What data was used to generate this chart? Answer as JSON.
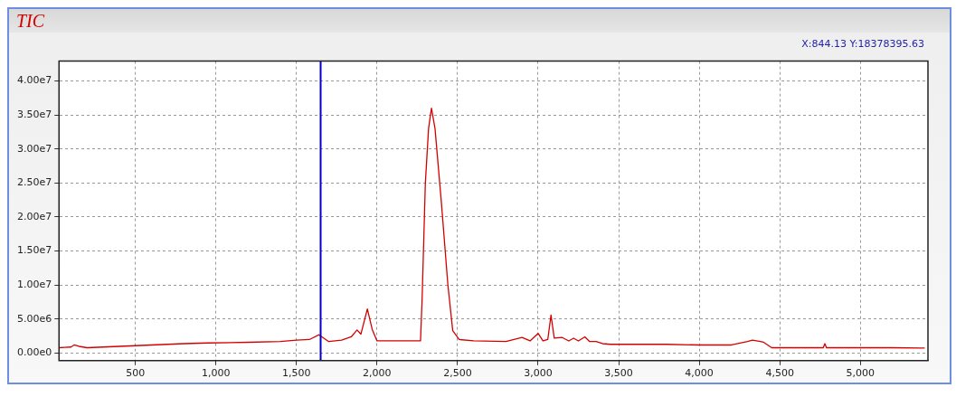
{
  "chart_data": {
    "type": "line",
    "title": "TIC",
    "annotations": [
      "X:844.13 Y:18378395.63"
    ],
    "x": [
      26,
      60,
      100,
      120,
      150,
      200,
      400,
      600,
      800,
      950,
      1200,
      1400,
      1500,
      1580,
      1640,
      1700,
      1780,
      1840,
      1876,
      1900,
      1940,
      1970,
      2000,
      2100,
      2200,
      2270,
      2280,
      2300,
      2320,
      2338,
      2360,
      2400,
      2440,
      2470,
      2510,
      2600,
      2800,
      2900,
      2950,
      3000,
      3030,
      3060,
      3080,
      3100,
      3150,
      3190,
      3220,
      3250,
      3290,
      3320,
      3360,
      3400,
      3450,
      3600,
      3800,
      4000,
      4200,
      4300,
      4330,
      4380,
      4400,
      4450,
      4600,
      4770,
      4780,
      4790,
      5000,
      5200,
      5400
    ],
    "series": [
      {
        "color": "#d40000",
        "values": [
          800000.0,
          850000.0,
          900000.0,
          1200000.0,
          1000000.0,
          800000.0,
          1000000.0,
          1200000.0,
          1400000.0,
          1500000.0,
          1600000.0,
          1700000.0,
          1900000.0,
          2000000.0,
          2700000.0,
          1700000.0,
          1900000.0,
          2400000.0,
          3400000.0,
          2800000.0,
          6500000.0,
          3500000.0,
          1800000.0,
          1800000.0,
          1800000.0,
          1800000.0,
          8000000.0,
          25000000.0,
          33000000.0,
          36000000.0,
          33000000.0,
          22000000.0,
          10000000.0,
          3300000.0,
          2000000.0,
          1800000.0,
          1700000.0,
          2300000.0,
          1800000.0,
          2900000.0,
          1800000.0,
          2000000.0,
          5600000.0,
          2200000.0,
          2300000.0,
          1800000.0,
          2200000.0,
          1800000.0,
          2400000.0,
          1700000.0,
          1700000.0,
          1400000.0,
          1300000.0,
          1300000.0,
          1300000.0,
          1200000.0,
          1200000.0,
          1700000.0,
          1900000.0,
          1700000.0,
          1600000.0,
          800000.0,
          800000.0,
          800000.0,
          1400000.0,
          800000.0,
          800000.0,
          800000.0,
          750000.0
        ]
      }
    ],
    "xlim": [
      26,
      5420
    ],
    "ylim": [
      -1100000.0,
      42900000.0
    ],
    "xticks": [
      {
        "value": 500,
        "label": "500"
      },
      {
        "value": 1000,
        "label": "1,000"
      },
      {
        "value": 1500,
        "label": "1,500"
      },
      {
        "value": 2000,
        "label": "2,000"
      },
      {
        "value": 2500,
        "label": "2,500"
      },
      {
        "value": 3000,
        "label": "3,000"
      },
      {
        "value": 3500,
        "label": "3,500"
      },
      {
        "value": 4000,
        "label": "4,000"
      },
      {
        "value": 4500,
        "label": "4,500"
      },
      {
        "value": 5000,
        "label": "5,000"
      }
    ],
    "yticks": [
      {
        "value": 0,
        "label": "0.00e0"
      },
      {
        "value": 5000000.0,
        "label": "5.00e6"
      },
      {
        "value": 10000000.0,
        "label": "1.00e7"
      },
      {
        "value": 15000000.0,
        "label": "1.50e7"
      },
      {
        "value": 20000000.0,
        "label": "2.00e7"
      },
      {
        "value": 25000000.0,
        "label": "2.50e7"
      },
      {
        "value": 30000000.0,
        "label": "3.00e7"
      },
      {
        "value": 35000000.0,
        "label": "3.50e7"
      },
      {
        "value": 40000000.0,
        "label": "4.00e7"
      }
    ],
    "ref_lines": [
      {
        "axis": "x",
        "value": 1650,
        "color": "#0000cc"
      }
    ],
    "grid": true,
    "legend": false,
    "marker": "none",
    "line_style": "solid"
  }
}
